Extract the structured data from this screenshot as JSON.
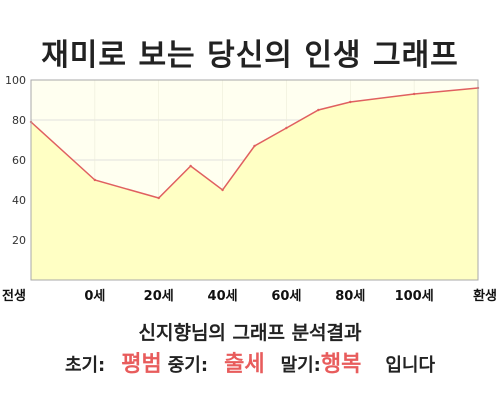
{
  "title": "재미로 보는 당신의 인생 그래프",
  "chart_data": {
    "type": "area",
    "x_labels": [
      "전생",
      "0세",
      "20세",
      "40세",
      "60세",
      "80세",
      "100세",
      "환생"
    ],
    "y_ticks": [
      20,
      40,
      60,
      80,
      100
    ],
    "ylim": [
      0,
      100
    ],
    "points": [
      {
        "x": "전생",
        "y": 79
      },
      {
        "x": "0세",
        "y": 50
      },
      {
        "x": "20세",
        "y": 41
      },
      {
        "x": "30세",
        "y": 57
      },
      {
        "x": "40세",
        "y": 45
      },
      {
        "x": "50세",
        "y": 67
      },
      {
        "x": "60세",
        "y": 76
      },
      {
        "x": "70세",
        "y": 85
      },
      {
        "x": "80세",
        "y": 89
      },
      {
        "x": "100세",
        "y": 93
      },
      {
        "x": "환생",
        "y": 96
      }
    ],
    "x_positions": {
      "전생": -1,
      "0세": 0,
      "20세": 1,
      "30세": 1.5,
      "40세": 2,
      "50세": 2.5,
      "60세": 3,
      "70세": 3.5,
      "80세": 4,
      "100세": 5,
      "환생": 6
    },
    "colors": {
      "fill": "#ffffc4",
      "line": "#e06060",
      "plot_bg": "#fffff0",
      "grid": "#d8d8d8"
    },
    "grid": true
  },
  "result": {
    "name_line": "신지향님의 그래프 분석결과",
    "early_label": "초기:",
    "early_value": "평범",
    "mid_label": "중기:",
    "mid_value": "출세",
    "late_label": "말기:",
    "late_value": "행복",
    "ending": "입니다"
  }
}
